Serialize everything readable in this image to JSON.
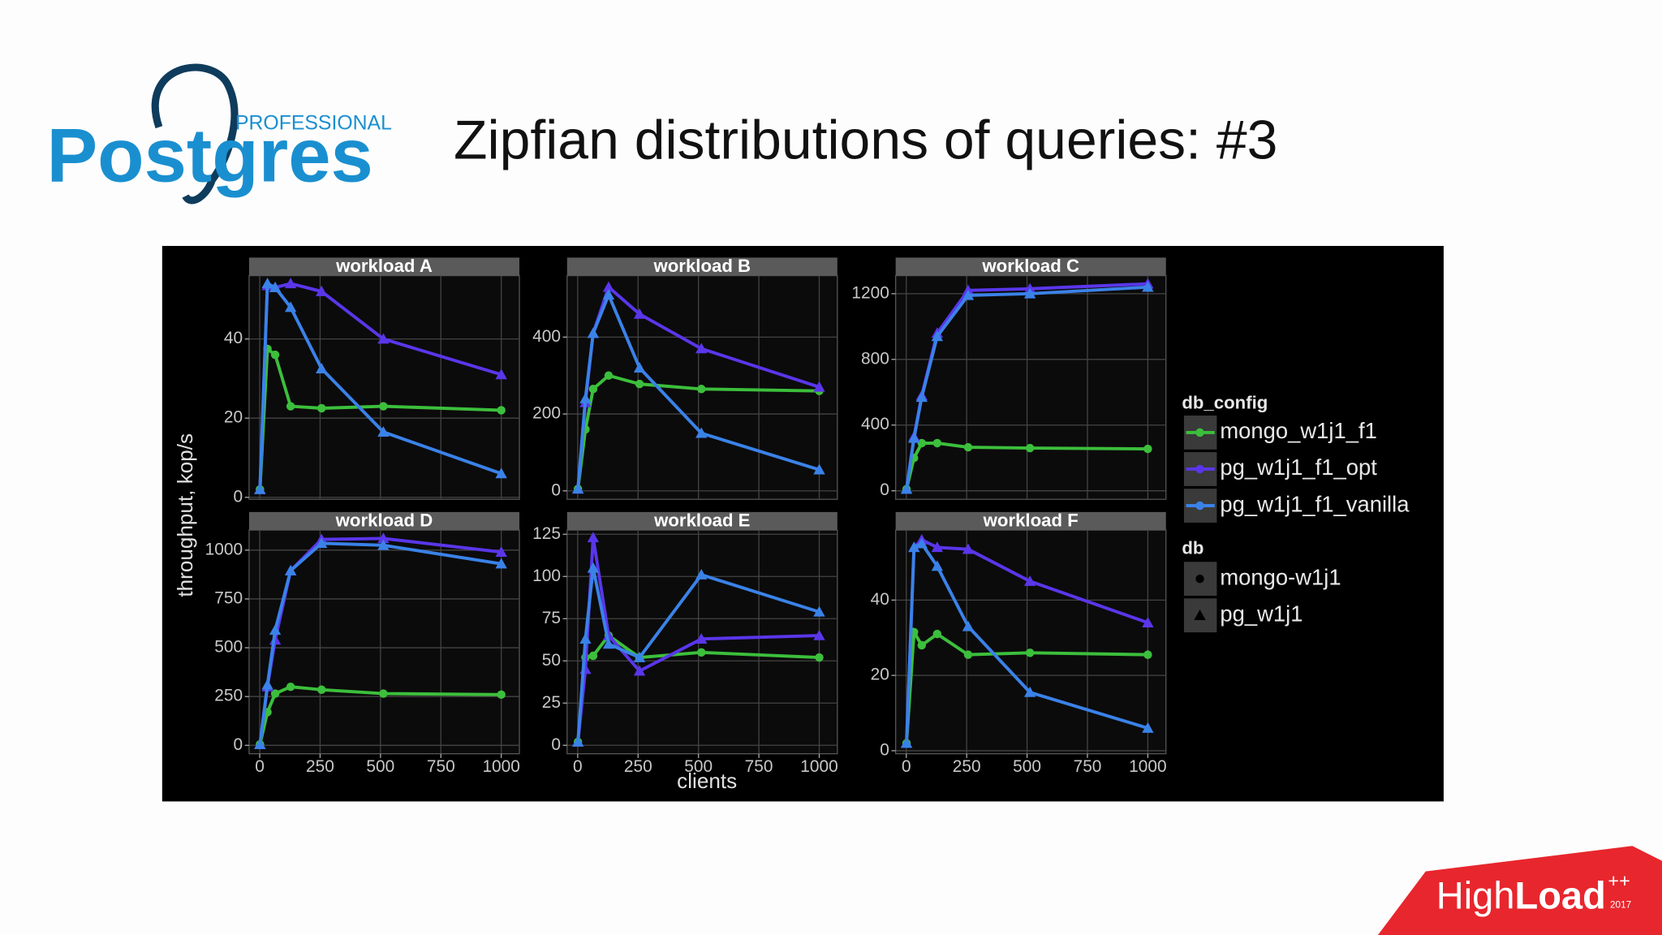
{
  "slide": {
    "logo_small": "PROFESSIONAL",
    "logo": "Postgres",
    "title": "Zipfian distributions of queries: #3",
    "footer_high": "High",
    "footer_load": "Load",
    "footer_sup": "++",
    "footer_year": "2017"
  },
  "shared": {
    "y_label": "throughput, kop/s",
    "x_label": "clients",
    "legend_title": "db_config",
    "shape_legend_title": "db",
    "shape_legend": [
      {
        "name": "mongo-w1j1",
        "marker": "circle"
      },
      {
        "name": "pg_w1j1",
        "marker": "triangle"
      }
    ]
  },
  "chart_data": [
    {
      "type": "line",
      "title": "workload A",
      "x": [
        1,
        32,
        64,
        128,
        256,
        512,
        1000
      ],
      "xlim": [
        -44,
        1075
      ],
      "xticks": [
        0,
        250,
        500,
        750,
        1000
      ],
      "ylim": [
        -0.5,
        56
      ],
      "yticks": [
        0,
        20,
        40
      ],
      "grid": true,
      "series": [
        {
          "name": "mongo_w1j1_f1",
          "color": "#3cbf3c",
          "marker": "circle",
          "values": [
            2,
            37.5,
            36,
            23,
            22.5,
            23,
            22
          ]
        },
        {
          "name": "pg_w1j1_f1_opt",
          "color": "#5a36ea",
          "marker": "triangle",
          "values": [
            2,
            53.5,
            53,
            54,
            52,
            40,
            31
          ]
        },
        {
          "name": "pg_w1j1_f1_vanilla",
          "color": "#3a82e8",
          "marker": "triangle",
          "values": [
            2,
            54,
            53,
            48,
            32.5,
            16.5,
            6
          ]
        }
      ]
    },
    {
      "type": "line",
      "title": "workload B",
      "x": [
        1,
        32,
        64,
        128,
        256,
        512,
        1000
      ],
      "xlim": [
        -44,
        1075
      ],
      "xticks": [
        0,
        250,
        500,
        750,
        1000
      ],
      "ylim": [
        -22,
        560
      ],
      "yticks": [
        0,
        200,
        400
      ],
      "grid": true,
      "series": [
        {
          "name": "mongo_w1j1_f1",
          "color": "#3cbf3c",
          "marker": "circle",
          "values": [
            5,
            160,
            265,
            300,
            278,
            265,
            260
          ]
        },
        {
          "name": "pg_w1j1_f1_opt",
          "color": "#5a36ea",
          "marker": "triangle",
          "values": [
            5,
            230,
            410,
            530,
            460,
            370,
            270
          ]
        },
        {
          "name": "pg_w1j1_f1_vanilla",
          "color": "#3a82e8",
          "marker": "triangle",
          "values": [
            5,
            240,
            410,
            510,
            320,
            150,
            55
          ]
        }
      ]
    },
    {
      "type": "line",
      "title": "workload C",
      "x": [
        1,
        32,
        64,
        128,
        256,
        512,
        1000
      ],
      "xlim": [
        -44,
        1075
      ],
      "xticks": [
        0,
        250,
        500,
        750,
        1000
      ],
      "ylim": [
        -52,
        1310
      ],
      "yticks": [
        0,
        400,
        800,
        1200
      ],
      "grid": true,
      "series": [
        {
          "name": "mongo_w1j1_f1",
          "color": "#3cbf3c",
          "marker": "circle",
          "values": [
            10,
            200,
            290,
            290,
            265,
            260,
            255
          ]
        },
        {
          "name": "pg_w1j1_f1_opt",
          "color": "#5a36ea",
          "marker": "triangle",
          "values": [
            10,
            330,
            580,
            960,
            1220,
            1230,
            1260
          ]
        },
        {
          "name": "pg_w1j1_f1_vanilla",
          "color": "#3a82e8",
          "marker": "triangle",
          "values": [
            10,
            320,
            570,
            940,
            1190,
            1200,
            1240
          ]
        }
      ]
    },
    {
      "type": "line",
      "title": "workload D",
      "x": [
        1,
        32,
        64,
        128,
        256,
        512,
        1000
      ],
      "xlim": [
        -44,
        1075
      ],
      "xticks": [
        0,
        250,
        500,
        750,
        1000
      ],
      "ylim": [
        -43,
        1103
      ],
      "yticks": [
        0,
        250,
        500,
        750,
        1000
      ],
      "grid": true,
      "series": [
        {
          "name": "mongo_w1j1_f1",
          "color": "#3cbf3c",
          "marker": "circle",
          "values": [
            5,
            170,
            265,
            300,
            285,
            265,
            260
          ]
        },
        {
          "name": "pg_w1j1_f1_opt",
          "color": "#5a36ea",
          "marker": "triangle",
          "values": [
            5,
            300,
            540,
            895,
            1055,
            1060,
            990
          ]
        },
        {
          "name": "pg_w1j1_f1_vanilla",
          "color": "#3a82e8",
          "marker": "triangle",
          "values": [
            5,
            310,
            590,
            895,
            1035,
            1025,
            930
          ]
        }
      ]
    },
    {
      "type": "line",
      "title": "workload E",
      "x": [
        1,
        32,
        64,
        128,
        256,
        512,
        1000
      ],
      "xlim": [
        -44,
        1075
      ],
      "xticks": [
        0,
        250,
        500,
        750,
        1000
      ],
      "ylim": [
        -5,
        127.5
      ],
      "yticks": [
        0,
        25,
        50,
        75,
        100,
        125
      ],
      "grid": true,
      "series": [
        {
          "name": "mongo_w1j1_f1",
          "color": "#3cbf3c",
          "marker": "circle",
          "values": [
            2,
            52,
            53,
            65,
            52,
            55,
            52
          ]
        },
        {
          "name": "pg_w1j1_f1_opt",
          "color": "#5a36ea",
          "marker": "triangle",
          "values": [
            2,
            45,
            123,
            65,
            44,
            63,
            65
          ]
        },
        {
          "name": "pg_w1j1_f1_vanilla",
          "color": "#3a82e8",
          "marker": "triangle",
          "values": [
            2,
            63,
            105,
            60,
            52,
            101,
            79
          ]
        }
      ]
    },
    {
      "type": "line",
      "title": "workload F",
      "x": [
        1,
        32,
        64,
        128,
        256,
        512,
        1000
      ],
      "xlim": [
        -44,
        1075
      ],
      "xticks": [
        0,
        250,
        500,
        750,
        1000
      ],
      "ylim": [
        -0.8,
        58.6
      ],
      "yticks": [
        0,
        20,
        40
      ],
      "grid": true,
      "series": [
        {
          "name": "mongo_w1j1_f1",
          "color": "#3cbf3c",
          "marker": "circle",
          "values": [
            2,
            31.5,
            28,
            31,
            25.5,
            26,
            25.5
          ]
        },
        {
          "name": "pg_w1j1_f1_opt",
          "color": "#5a36ea",
          "marker": "triangle",
          "values": [
            2,
            54,
            56,
            54,
            53.5,
            45,
            34
          ]
        },
        {
          "name": "pg_w1j1_f1_vanilla",
          "color": "#3a82e8",
          "marker": "triangle",
          "values": [
            2,
            54,
            55,
            49,
            33,
            15.5,
            6
          ]
        }
      ]
    }
  ]
}
